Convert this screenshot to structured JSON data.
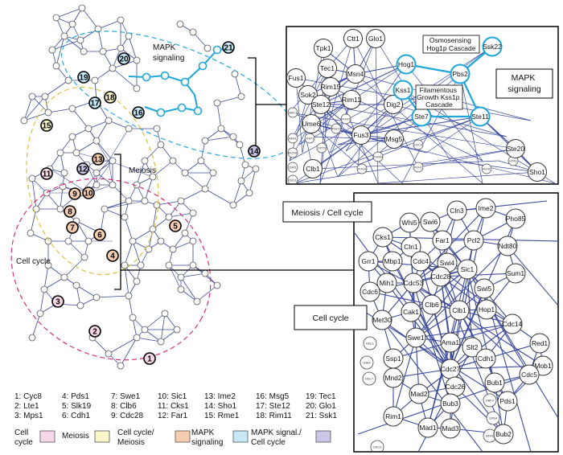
{
  "overview": {
    "region_labels": {
      "mapk": "MAPK\nsignaling",
      "meiosis": "Meiosis",
      "cell_cycle": "Cell cycle"
    },
    "numbered_nodes": [
      {
        "n": "1",
        "cat": "cell_cycle"
      },
      {
        "n": "2",
        "cat": "cell_cycle"
      },
      {
        "n": "3",
        "cat": "cell_cycle"
      },
      {
        "n": "4",
        "cat": "cc_meiosis"
      },
      {
        "n": "5",
        "cat": "cc_meiosis"
      },
      {
        "n": "6",
        "cat": "cc_meiosis"
      },
      {
        "n": "7",
        "cat": "mapk"
      },
      {
        "n": "8",
        "cat": "mapk"
      },
      {
        "n": "9",
        "cat": "mapk"
      },
      {
        "n": "10",
        "cat": "cc_meiosis"
      },
      {
        "n": "11",
        "cat": "cell_cycle"
      },
      {
        "n": "12",
        "cat": "mapk_cc"
      },
      {
        "n": "13",
        "cat": "cc_meiosis"
      },
      {
        "n": "14",
        "cat": "mapk_cc"
      },
      {
        "n": "15",
        "cat": "meiosis"
      },
      {
        "n": "16",
        "cat": "mapk_signal"
      },
      {
        "n": "17",
        "cat": "mapk_signal"
      },
      {
        "n": "18",
        "cat": "meiosis"
      },
      {
        "n": "19",
        "cat": "mapk_signal"
      },
      {
        "n": "20",
        "cat": "mapk_signal"
      },
      {
        "n": "21",
        "cat": "mapk_signal"
      }
    ]
  },
  "insets": {
    "mapk": {
      "title": "MAPK\nsignaling",
      "annotations": [
        "Osmosensing\nHog1p Cascade",
        "Filamentous\nGrowth Kss1p\nCascade"
      ],
      "nodes": [
        "Ctt1",
        "Glo1",
        "Tpk1",
        "Tec1",
        "Fus1",
        "Rim15",
        "Msn4",
        "Hog1",
        "Pbs2",
        "Ssk22",
        "Sok2",
        "Rim11",
        "Dig2",
        "Kss1",
        "Ste12",
        "Ume6",
        "Ste7",
        "Ste11",
        "Msg5",
        "Fus3",
        "Clb1",
        "Ste20",
        "Sho1"
      ],
      "tiny_nodes": [
        "SMC1",
        "BFA1",
        "MCM1",
        "SWI1",
        "DIG1",
        "YHP1",
        "SPT3",
        "PHO3",
        "PHO5",
        "PHO84",
        "PHO4",
        "CDC4",
        "FKH1",
        "FKH2",
        "HTA1"
      ]
    },
    "cell_cycle_box": {
      "labels": [
        "Meiosis / Cell cycle",
        "Cell cycle"
      ],
      "nodes": [
        "Cln3",
        "Ime2",
        "Whi5",
        "Swi6",
        "Pho85",
        "Cks1",
        "Far1",
        "Cln1",
        "Swi4",
        "Pcl2",
        "Ndt80",
        "Grr1",
        "Mbp1",
        "Cdc4",
        "Cdc28",
        "Sic1",
        "Sum1",
        "Mih1",
        "Cdc53",
        "Cdc6",
        "Swi5",
        "Clb6",
        "Cak1",
        "Clb1",
        "Hop1",
        "Met30",
        "Cdc14",
        "Swe1",
        "Red1",
        "Ama1",
        "Slt2",
        "Ssp1",
        "Cdh1",
        "Mob1",
        "Cdc27",
        "Cdc5",
        "Mnd2",
        "Cdc26",
        "Bub1",
        "Mad2",
        "Pds1",
        "Bub3",
        "Rim1",
        "Mad1",
        "Mad3",
        "Bub2"
      ],
      "tiny_nodes": [
        "HSL1",
        "GIN4",
        "HSL7",
        "DBF2",
        "LRS4",
        "BFA1",
        "GSC2"
      ]
    }
  },
  "legend": {
    "entries": [
      "1: Cyc8",
      "4: Pds1",
      "7: Swe1",
      "10: Sic1",
      "13: Ime2",
      "16: Msg5",
      "19: Tec1",
      "2: Lte1",
      "5: Slk19",
      "8: Clb6",
      "11: Cks1",
      "14: Sho1",
      "17: Ste12",
      "20: Glo1",
      "3: Mps1",
      "6: Cdh1",
      "9: Cdc28",
      "12: Far1",
      "15: Rme1",
      "18: Rim11",
      "21: Ssk1"
    ],
    "categories": [
      {
        "label": "Cell\ncycle",
        "color": "#f8d7e8"
      },
      {
        "label": "Meiosis",
        "color": "#fbf6c8"
      },
      {
        "label": "Cell cycle/\nMeiosis",
        "color": "#f6cdb0"
      },
      {
        "label": "MAPK\nsignaling",
        "color": "#c6e9f5"
      },
      {
        "label": "MAPK signal./\nCell cycle",
        "color": "#c9c6e6"
      }
    ]
  },
  "colors": {
    "cell_cycle": "#f8d7e8",
    "meiosis": "#fbf6c8",
    "cc_meiosis": "#f6cdb0",
    "mapk": "#f6cdb0",
    "mapk_signal": "#c6e9f5",
    "mapk_cc": "#c9c6e6",
    "edge": "#3c4a9e",
    "mapk_path": "#1ea7d8",
    "ellipse_pink": "#d6307a",
    "ellipse_yellow": "#d8c243",
    "ellipse_blue": "#2aa8d8"
  }
}
